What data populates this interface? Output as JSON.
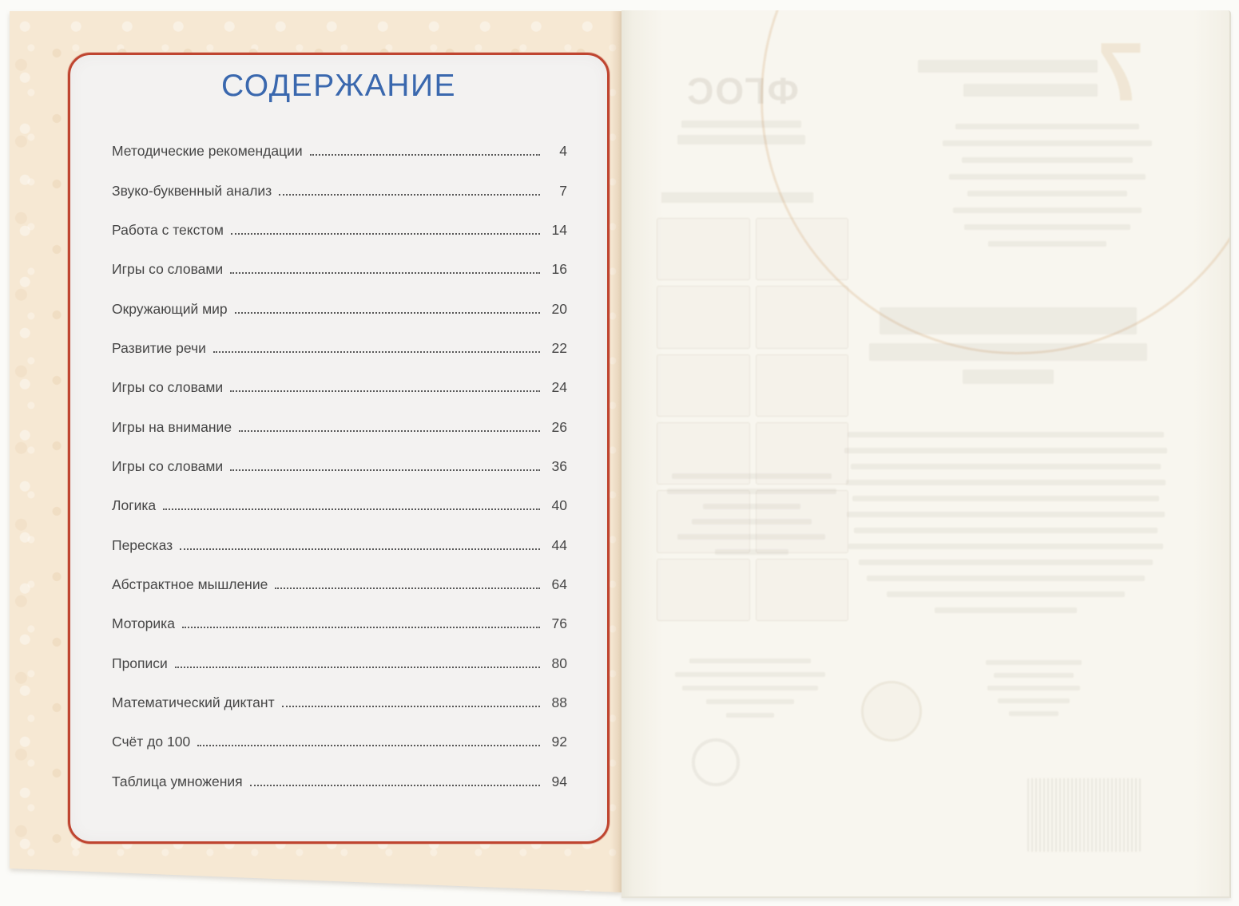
{
  "toc": {
    "title": "СОДЕРЖАНИЕ",
    "entries": [
      {
        "label": "Методические рекомендации",
        "page": "4"
      },
      {
        "label": "Звуко-буквенный анализ",
        "page": "7"
      },
      {
        "label": "Работа с текстом",
        "page": "14"
      },
      {
        "label": "Игры со словами",
        "page": "16"
      },
      {
        "label": "Окружающий мир",
        "page": "20"
      },
      {
        "label": "Развитие речи",
        "page": "22"
      },
      {
        "label": "Игры со словами",
        "page": "24"
      },
      {
        "label": "Игры на внимание",
        "page": "26"
      },
      {
        "label": "Игры со словами",
        "page": "36"
      },
      {
        "label": "Логика",
        "page": "40"
      },
      {
        "label": "Пересказ",
        "page": "44"
      },
      {
        "label": "Абстрактное мышление",
        "page": "64"
      },
      {
        "label": "Моторика",
        "page": "76"
      },
      {
        "label": "Прописи",
        "page": "80"
      },
      {
        "label": "Математический диктант",
        "page": "88"
      },
      {
        "label": "Счёт до 100",
        "page": "92"
      },
      {
        "label": "Таблица умножения",
        "page": "94"
      }
    ]
  },
  "ghost_page": {
    "fgos_logo_text": "ФГОС",
    "big_digit": "7"
  },
  "colors": {
    "cover_background": "#f6e8d3",
    "panel_background": "#f3f2f1",
    "panel_border_red": "#bf4530",
    "title_blue": "#3a68ae",
    "entry_text": "#464646",
    "right_page": "#f8f6ef"
  }
}
